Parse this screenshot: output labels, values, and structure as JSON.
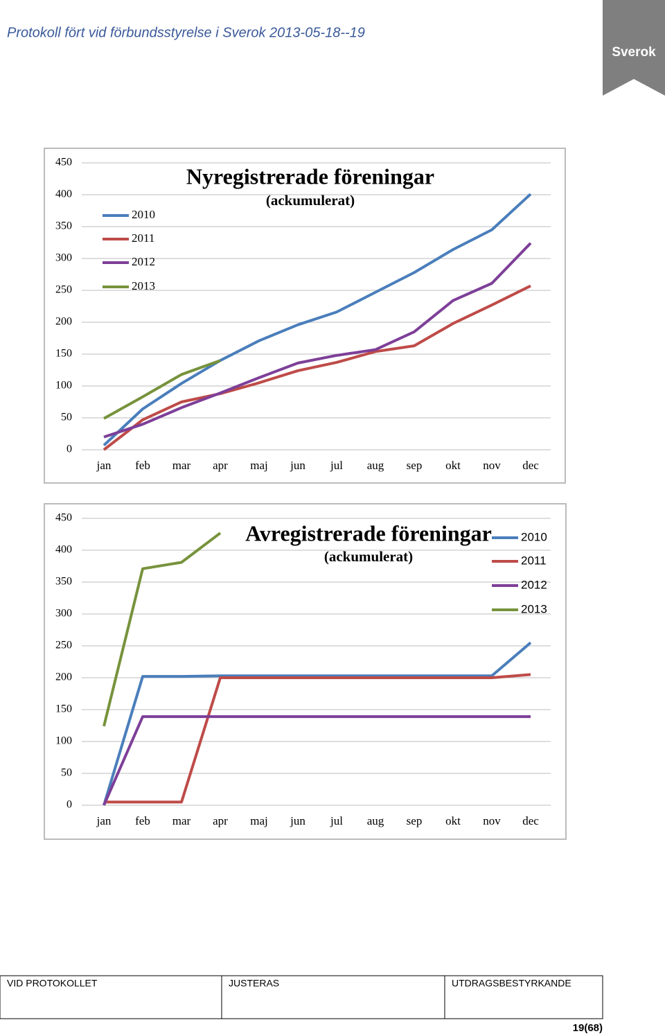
{
  "header": {
    "title": "Protokoll fört vid förbundsstyrelse i Sverok 2013-05-18--19",
    "logo": "Sverok"
  },
  "chart_data": [
    {
      "type": "line",
      "title": "Nyregistrerade föreningar",
      "subtitle": "(ackumulerat)",
      "categories": [
        "jan",
        "feb",
        "mar",
        "apr",
        "maj",
        "jun",
        "jul",
        "aug",
        "sep",
        "okt",
        "nov",
        "dec"
      ],
      "ylim": [
        0,
        450
      ],
      "yticks": [
        0,
        50,
        100,
        150,
        200,
        250,
        300,
        350,
        400,
        450
      ],
      "grid": true,
      "series": [
        {
          "name": "2010",
          "color": "#4a7ebb",
          "values": [
            7,
            64,
            104,
            140,
            171,
            196,
            216,
            247,
            278,
            314,
            345,
            401
          ]
        },
        {
          "name": "2011",
          "color": "#be4b48",
          "values": [
            0,
            47,
            75,
            88,
            105,
            124,
            137,
            154,
            163,
            198,
            227,
            257
          ]
        },
        {
          "name": "2012",
          "color": "#7d3f98",
          "values": [
            20,
            40,
            66,
            89,
            113,
            136,
            148,
            157,
            185,
            234,
            261,
            324
          ]
        },
        {
          "name": "2013",
          "color": "#77933c",
          "values": [
            49,
            83,
            118,
            140,
            null,
            null,
            null,
            null,
            null,
            null,
            null,
            null
          ]
        }
      ]
    },
    {
      "type": "line",
      "title": "Avregistrerade föreningar",
      "subtitle": "(ackumulerat)",
      "categories": [
        "jan",
        "feb",
        "mar",
        "apr",
        "maj",
        "jun",
        "jul",
        "aug",
        "sep",
        "okt",
        "nov",
        "dec"
      ],
      "ylim": [
        0,
        450
      ],
      "yticks": [
        0,
        50,
        100,
        150,
        200,
        250,
        300,
        350,
        400,
        450
      ],
      "grid": true,
      "series": [
        {
          "name": "2010",
          "color": "#4a7ebb",
          "values": [
            0,
            202,
            202,
            203,
            203,
            203,
            203,
            203,
            203,
            203,
            203,
            255
          ]
        },
        {
          "name": "2011",
          "color": "#be4b48",
          "values": [
            5,
            5,
            5,
            200,
            200,
            200,
            200,
            200,
            200,
            200,
            200,
            205
          ]
        },
        {
          "name": "2012",
          "color": "#7d3f98",
          "values": [
            0,
            139,
            139,
            139,
            139,
            139,
            139,
            139,
            139,
            139,
            139,
            139
          ]
        },
        {
          "name": "2013",
          "color": "#77933c",
          "values": [
            124,
            371,
            381,
            427,
            null,
            null,
            null,
            null,
            null,
            null,
            null,
            null
          ]
        }
      ]
    }
  ],
  "footer": {
    "columns": [
      "VID PROTOKOLLET",
      "JUSTERAS",
      "UTDRAGSBESTYRKANDE"
    ],
    "page": "19(68)"
  }
}
